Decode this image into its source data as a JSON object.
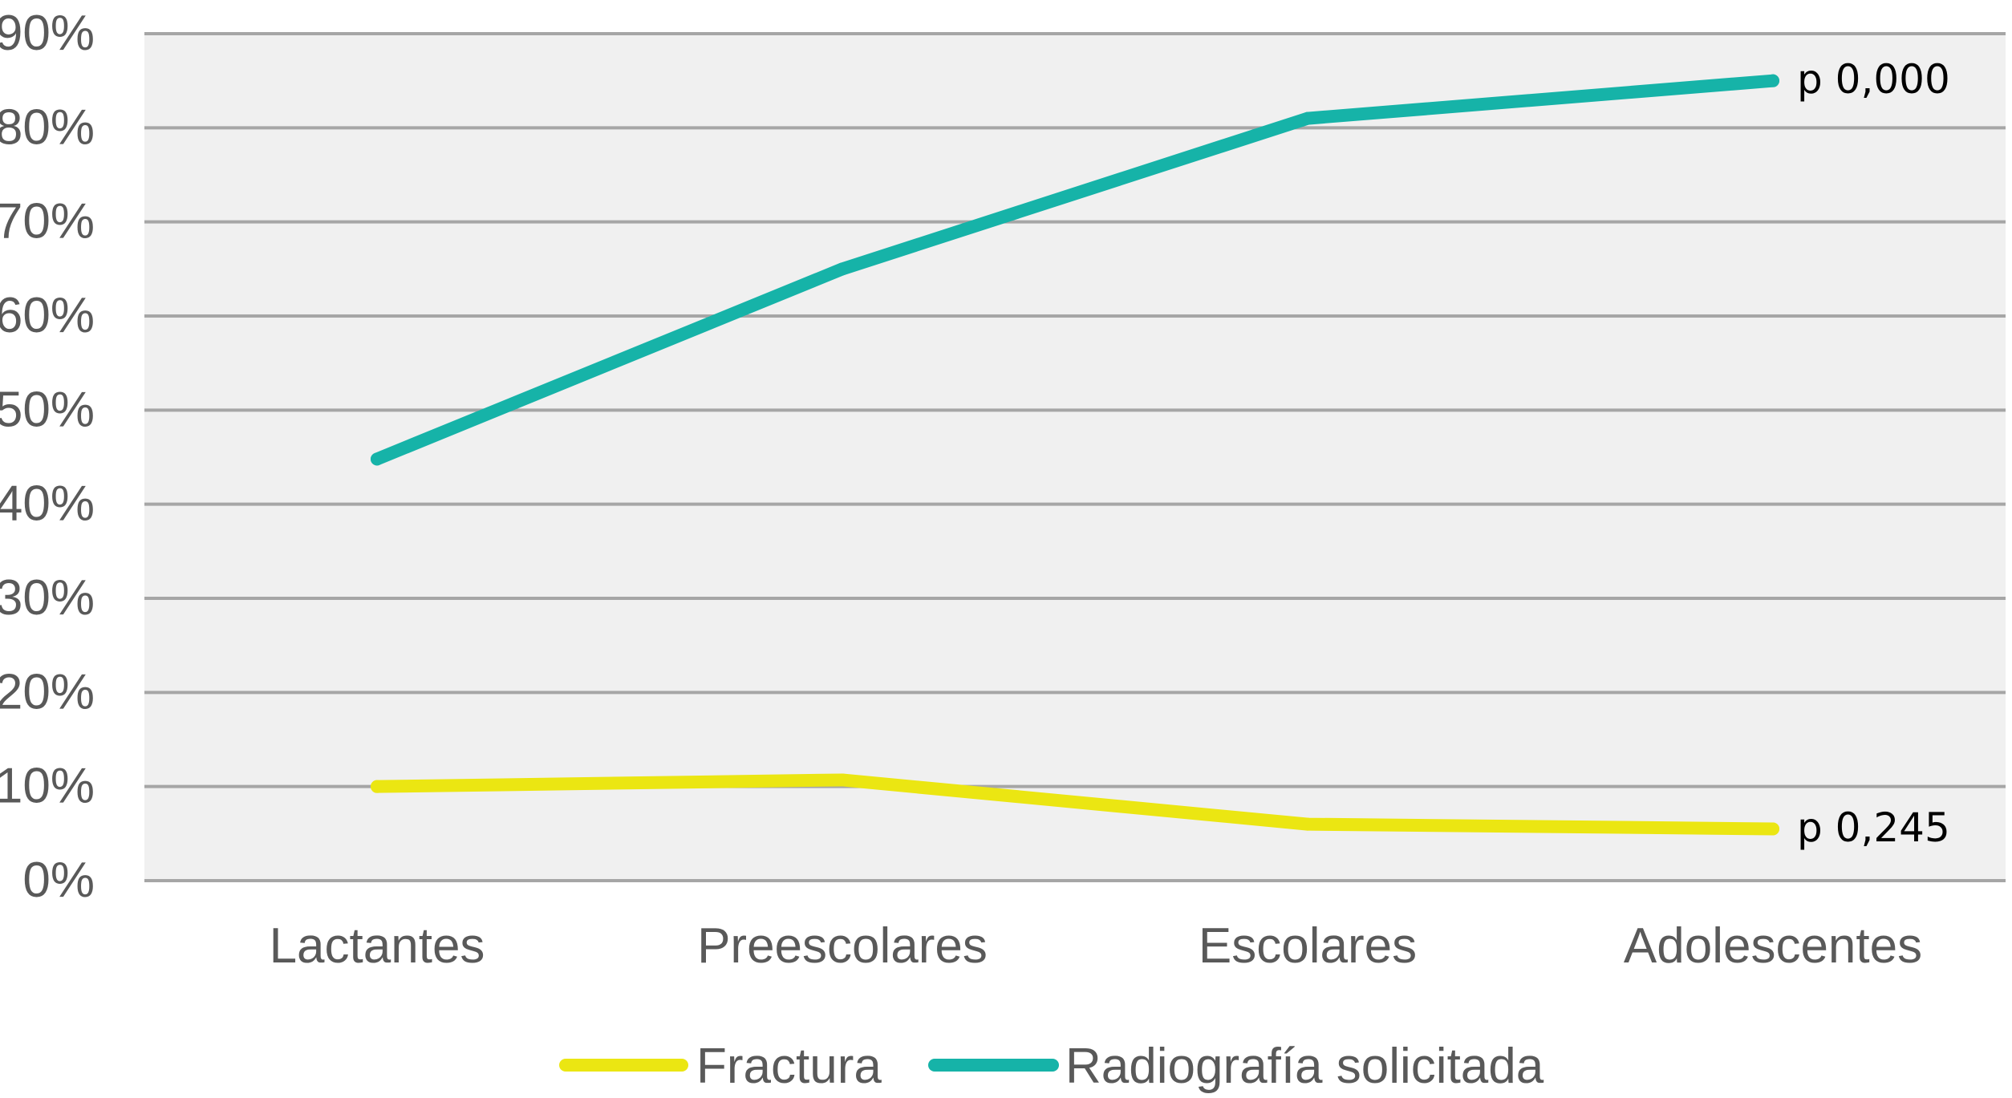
{
  "chart_data": {
    "type": "line",
    "categories": [
      "Lactantes",
      "Preescolares",
      "Escolares",
      "Adolescentes"
    ],
    "series": [
      {
        "name": "Fractura",
        "values": [
          10,
          10.7,
          6,
          5.5
        ],
        "color": "#ebe612"
      },
      {
        "name": "Radiografía solicitada",
        "values": [
          44.8,
          65,
          81,
          85
        ],
        "color": "#16b3a8"
      }
    ],
    "y_ticks": [
      "0%",
      "10%",
      "20%",
      "30%",
      "40%",
      "50%",
      "60%",
      "70%",
      "80%",
      "90%"
    ],
    "ylim": [
      0,
      90
    ],
    "y_unit": "%",
    "grid": true,
    "plot_background": "#f0f0f0",
    "gridline_color": "#a6a6a6",
    "legend_position": "bottom",
    "annotations": [
      {
        "series": "Radiografía solicitada",
        "text": "p 0,000"
      },
      {
        "series": "Fractura",
        "text": "p 0,245"
      }
    ],
    "title": "",
    "xlabel": "",
    "ylabel": ""
  }
}
